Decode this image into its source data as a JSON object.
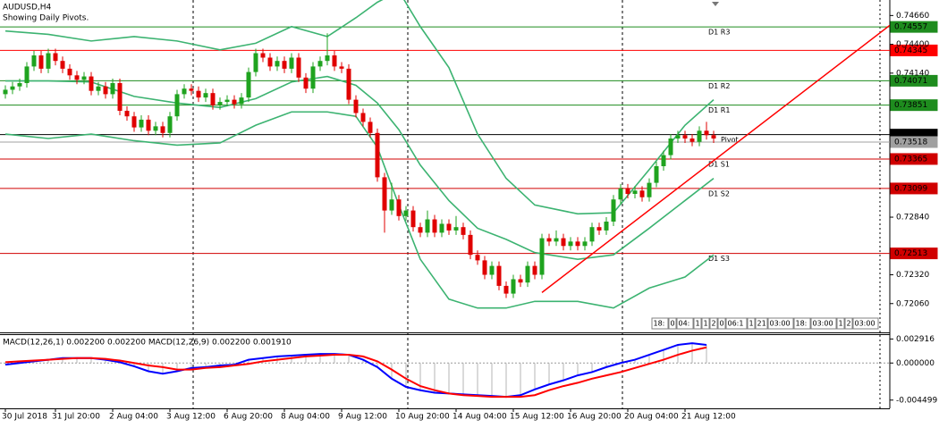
{
  "header": {
    "symbol": "AUDUSD,H4",
    "note": "Showing Daily Pivots."
  },
  "chart_data": [
    {
      "type": "candlestick",
      "categories": [
        "30 Jul 2018",
        null,
        null,
        null,
        null,
        null,
        null,
        "31 Jul 20:00",
        null,
        null,
        null,
        null,
        null,
        null,
        null,
        "2 Aug 04:00",
        null,
        null,
        null,
        null,
        null,
        null,
        null,
        "3 Aug 12:00",
        null,
        null,
        null,
        null,
        null,
        null,
        null,
        "6 Aug 20:00",
        null,
        null,
        null,
        null,
        null,
        null,
        null,
        "8 Aug 04:00",
        null,
        null,
        null,
        null,
        null,
        null,
        null,
        "9 Aug 12:00",
        null,
        null,
        null,
        null,
        null,
        null,
        null,
        "10 Aug 20:00",
        null,
        null,
        null,
        null,
        null,
        null,
        null,
        "14 Aug 04:00",
        null,
        null,
        null,
        null,
        null,
        null,
        null,
        "15 Aug 12:00",
        null,
        null,
        null,
        null,
        null,
        null,
        null,
        "16 Aug 20:00",
        null,
        null,
        null,
        null,
        null,
        null,
        null,
        "20 Aug 04:00",
        null,
        null,
        null,
        null,
        null,
        null,
        null,
        "21 Aug 12:00",
        null,
        null,
        null,
        null
      ],
      "open": [
        0.7395,
        0.7399,
        0.7402,
        0.7405,
        0.742,
        0.743,
        0.7418,
        0.7432,
        0.7425,
        0.7418,
        0.7412,
        0.7408,
        0.7411,
        0.7398,
        0.7402,
        0.7395,
        0.7405,
        0.738,
        0.7375,
        0.7365,
        0.7372,
        0.7362,
        0.7366,
        0.736,
        0.7375,
        0.7395,
        0.74,
        0.7398,
        0.7392,
        0.7396,
        0.7385,
        0.7388,
        0.739,
        0.7386,
        0.7392,
        0.7415,
        0.7432,
        0.7428,
        0.742,
        0.7425,
        0.7418,
        0.7428,
        0.741,
        0.74,
        0.742,
        0.7425,
        0.743,
        0.742,
        0.7418,
        0.739,
        0.7378,
        0.737,
        0.736,
        0.732,
        0.729,
        0.73,
        0.7285,
        0.729,
        0.7275,
        0.727,
        0.7282,
        0.727,
        0.7278,
        0.7272,
        0.7275,
        0.7268,
        0.725,
        0.7245,
        0.7232,
        0.724,
        0.7222,
        0.7215,
        0.7228,
        0.7225,
        0.724,
        0.7232,
        0.7265,
        0.7262,
        0.7265,
        0.7258,
        0.7262,
        0.7258,
        0.7262,
        0.7275,
        0.7272,
        0.728,
        0.73,
        0.731,
        0.7305,
        0.7308,
        0.7302,
        0.7315,
        0.733,
        0.734,
        0.7355,
        0.7358,
        0.7355,
        0.7352,
        0.7362,
        0.7358
      ],
      "high": [
        0.7403,
        0.7406,
        0.7409,
        0.7424,
        0.7434,
        0.7434,
        0.7436,
        0.7436,
        0.7429,
        0.7422,
        0.7416,
        0.7415,
        0.7415,
        0.7406,
        0.7406,
        0.7409,
        0.7409,
        0.7384,
        0.7379,
        0.7376,
        0.7376,
        0.737,
        0.737,
        0.7379,
        0.7399,
        0.7404,
        0.7404,
        0.7402,
        0.74,
        0.74,
        0.7392,
        0.7394,
        0.7394,
        0.7396,
        0.7419,
        0.7436,
        0.7436,
        0.7432,
        0.7429,
        0.7429,
        0.7432,
        0.7432,
        0.7414,
        0.7424,
        0.7429,
        0.745,
        0.7434,
        0.7424,
        0.7422,
        0.7394,
        0.7382,
        0.7374,
        0.7364,
        0.7324,
        0.7315,
        0.7304,
        0.7294,
        0.7294,
        0.7279,
        0.729,
        0.7286,
        0.7282,
        0.7282,
        0.7285,
        0.7279,
        0.7272,
        0.7254,
        0.7249,
        0.7244,
        0.7244,
        0.7226,
        0.7232,
        0.7232,
        0.7244,
        0.7244,
        0.7269,
        0.7269,
        0.7272,
        0.7269,
        0.7266,
        0.7266,
        0.7266,
        0.7279,
        0.7279,
        0.7284,
        0.7304,
        0.7314,
        0.7314,
        0.7312,
        0.7312,
        0.7319,
        0.7334,
        0.7344,
        0.7359,
        0.7362,
        0.7362,
        0.7359,
        0.7366,
        0.737,
        0.7362
      ],
      "low": [
        0.7391,
        0.7395,
        0.7398,
        0.7401,
        0.7416,
        0.7414,
        0.7414,
        0.7421,
        0.7414,
        0.7408,
        0.7404,
        0.7404,
        0.7394,
        0.7394,
        0.7391,
        0.7391,
        0.7376,
        0.7371,
        0.7361,
        0.7361,
        0.7358,
        0.7358,
        0.7356,
        0.7356,
        0.7371,
        0.7391,
        0.7394,
        0.7388,
        0.7388,
        0.7381,
        0.7381,
        0.7384,
        0.7382,
        0.7382,
        0.7388,
        0.7411,
        0.7424,
        0.7416,
        0.7416,
        0.7414,
        0.7414,
        0.7406,
        0.7396,
        0.7396,
        0.7416,
        0.7421,
        0.7416,
        0.7414,
        0.7386,
        0.7374,
        0.7366,
        0.7356,
        0.7316,
        0.727,
        0.7286,
        0.7281,
        0.7281,
        0.7271,
        0.7266,
        0.7266,
        0.7266,
        0.7266,
        0.7268,
        0.7268,
        0.7264,
        0.7246,
        0.7241,
        0.7228,
        0.7228,
        0.7218,
        0.7211,
        0.7211,
        0.7221,
        0.7221,
        0.7228,
        0.7228,
        0.7258,
        0.7258,
        0.7254,
        0.7254,
        0.7254,
        0.7254,
        0.7258,
        0.7268,
        0.7268,
        0.7276,
        0.7296,
        0.7301,
        0.7301,
        0.7298,
        0.7298,
        0.7311,
        0.7326,
        0.7336,
        0.7351,
        0.7351,
        0.7348,
        0.7348,
        0.7354,
        0.7351
      ],
      "close": [
        0.7399,
        0.7402,
        0.7405,
        0.742,
        0.743,
        0.7418,
        0.7432,
        0.7425,
        0.7418,
        0.7412,
        0.7408,
        0.7411,
        0.7398,
        0.7402,
        0.7395,
        0.7405,
        0.738,
        0.7375,
        0.7365,
        0.7372,
        0.7362,
        0.7366,
        0.736,
        0.7375,
        0.7395,
        0.74,
        0.7398,
        0.7392,
        0.7396,
        0.7385,
        0.7388,
        0.739,
        0.7386,
        0.7392,
        0.7415,
        0.7432,
        0.7428,
        0.742,
        0.7425,
        0.7418,
        0.7428,
        0.741,
        0.74,
        0.742,
        0.7425,
        0.743,
        0.742,
        0.7418,
        0.739,
        0.7378,
        0.737,
        0.736,
        0.732,
        0.729,
        0.73,
        0.7285,
        0.729,
        0.7275,
        0.727,
        0.7282,
        0.727,
        0.7278,
        0.7272,
        0.7275,
        0.7268,
        0.725,
        0.7245,
        0.7232,
        0.724,
        0.7222,
        0.7215,
        0.7228,
        0.7225,
        0.724,
        0.7232,
        0.7265,
        0.7262,
        0.7265,
        0.7258,
        0.7262,
        0.7258,
        0.7262,
        0.7275,
        0.7272,
        0.728,
        0.73,
        0.731,
        0.7305,
        0.7308,
        0.7302,
        0.7315,
        0.733,
        0.734,
        0.7355,
        0.7358,
        0.7355,
        0.7352,
        0.7362,
        0.7358,
        0.7355
      ],
      "up_color": "#1fa31f",
      "down_color": "#e00000",
      "ylim": [
        0.718,
        0.748
      ],
      "yticks": [
        {
          "value": 0.7466,
          "label": "0.74660"
        },
        {
          "value": 0.744,
          "label": "0.74400"
        },
        {
          "value": 0.7414,
          "label": "0.74140"
        },
        {
          "value": 0.7284,
          "label": "0.72840"
        },
        {
          "value": 0.7232,
          "label": "0.72320"
        },
        {
          "value": 0.7206,
          "label": "0.72060"
        }
      ],
      "bands": {
        "x": [
          0,
          6,
          12,
          18,
          24,
          30,
          35,
          40,
          45,
          49,
          52,
          55,
          58,
          62,
          66,
          70,
          74,
          80,
          85,
          90,
          95,
          99
        ],
        "color": "#3cb371",
        "series": [
          {
            "values": [
              0.7452,
              0.7449,
              0.7443,
              0.7447,
              0.7443,
              0.7435,
              0.7441,
              0.7456,
              0.7447,
              0.7464,
              0.7478,
              0.7488,
              0.7456,
              0.7419,
              0.7359,
              0.7319,
              0.7295,
              0.7287,
              0.7288,
              0.7327,
              0.7367,
              0.739
            ]
          },
          {
            "values": [
              0.7407,
              0.7407,
              0.7406,
              0.7393,
              0.7387,
              0.7383,
              0.7391,
              0.7406,
              0.7411,
              0.7403,
              0.7387,
              0.7363,
              0.7331,
              0.7299,
              0.7274,
              0.7264,
              0.7252,
              0.7246,
              0.725,
              0.7274,
              0.7299,
              0.7319
            ]
          },
          {
            "values": [
              0.7359,
              0.7355,
              0.7359,
              0.7353,
              0.7349,
              0.7351,
              0.7367,
              0.7379,
              0.7379,
              0.7375,
              0.7347,
              0.7295,
              0.7246,
              0.721,
              0.7202,
              0.7202,
              0.7208,
              0.7208,
              0.7202,
              0.722,
              0.723,
              0.725
            ]
          }
        ]
      },
      "trendline": {
        "x": [
          75,
          123.6
        ],
        "values": [
          0.7216,
          0.7457
        ],
        "color": "#ff0000"
      },
      "levels": [
        {
          "label": "D1 R3",
          "value": 0.74557,
          "color": "#1e8c1e"
        },
        {
          "value": 0.74345,
          "color": "#ff0000"
        },
        {
          "label": "D1 R2",
          "value": 0.74071,
          "color": "#1e8c1e"
        },
        {
          "label": "D1 R1",
          "value": 0.73851,
          "color": "#1e8c1e"
        },
        {
          "label": "Pivot",
          "value": 0.73585,
          "color": "#000000"
        },
        {
          "value": 0.73518,
          "color": "#a0a0a0"
        },
        {
          "label": "D1 S1",
          "value": 0.73365,
          "color": "#d00000"
        },
        {
          "label": "D1 S2",
          "value": 0.73099,
          "color": "#d00000"
        },
        {
          "label": "D1 S3",
          "value": 0.72513,
          "color": "#d00000"
        }
      ],
      "time_strip": [
        "18:",
        "0",
        "04:",
        "1",
        "1",
        "2",
        "0",
        "06:1",
        "1",
        "21",
        "03:00",
        "18:",
        "03:00",
        "1",
        "2",
        "03:00"
      ]
    },
    {
      "type": "macd",
      "title": "MACD(12,26,1) 0.002200 0.002200 MACD(12,26,9) 0.002200 0.001910",
      "x": [
        0,
        2,
        4,
        6,
        8,
        10,
        12,
        14,
        16,
        18,
        20,
        22,
        24,
        26,
        28,
        30,
        32,
        34,
        36,
        38,
        40,
        42,
        44,
        46,
        48,
        50,
        52,
        54,
        56,
        58,
        60,
        62,
        64,
        66,
        68,
        70,
        72,
        74,
        76,
        78,
        80,
        82,
        84,
        86,
        88,
        90,
        92,
        94,
        96,
        98
      ],
      "histogram_color": "#b4b4b4",
      "series": [
        {
          "color": "#0000ff",
          "values": [
            -0.0002,
            0.0,
            0.0002,
            0.0004,
            0.0006,
            0.0006,
            0.0006,
            0.0004,
            0.0001,
            -0.0004,
            -0.001,
            -0.0013,
            -0.001,
            -0.0006,
            -0.0005,
            -0.0003,
            -0.0002,
            0.0004,
            0.0006,
            0.0008,
            0.0009,
            0.001,
            0.0011,
            0.0011,
            0.001,
            0.0004,
            -0.0005,
            -0.0019,
            -0.0029,
            -0.0033,
            -0.0036,
            -0.0037,
            -0.0038,
            -0.0039,
            -0.004,
            -0.0041,
            -0.0039,
            -0.0032,
            -0.0026,
            -0.0021,
            -0.0015,
            -0.0011,
            -0.0005,
            0.0,
            0.0004,
            0.001,
            0.0016,
            0.0022,
            0.0024,
            0.0022
          ]
        },
        {
          "color": "#ff0000",
          "values": [
            0.0001,
            0.0002,
            0.0003,
            0.0004,
            0.0005,
            0.0006,
            0.0006,
            0.0005,
            0.0003,
            0.0,
            -0.0003,
            -0.0005,
            -0.0008,
            -0.0008,
            -0.0006,
            -0.0005,
            -0.0003,
            -0.0001,
            0.0002,
            0.0004,
            0.0006,
            0.0008,
            0.0009,
            0.001,
            0.001,
            0.0008,
            0.0002,
            -0.0008,
            -0.0019,
            -0.0028,
            -0.0033,
            -0.0037,
            -0.0039,
            -0.004,
            -0.0041,
            -0.0041,
            -0.0041,
            -0.0039,
            -0.0033,
            -0.0028,
            -0.0024,
            -0.0019,
            -0.0015,
            -0.0011,
            -0.0006,
            -0.0001,
            0.0004,
            0.001,
            0.0015,
            0.0019
          ]
        }
      ],
      "ylim": [
        -0.0055,
        0.0035
      ],
      "yticks": [
        0.002916,
        {
          "value": 0,
          "label": "0.000000"
        },
        -0.004499
      ]
    }
  ]
}
